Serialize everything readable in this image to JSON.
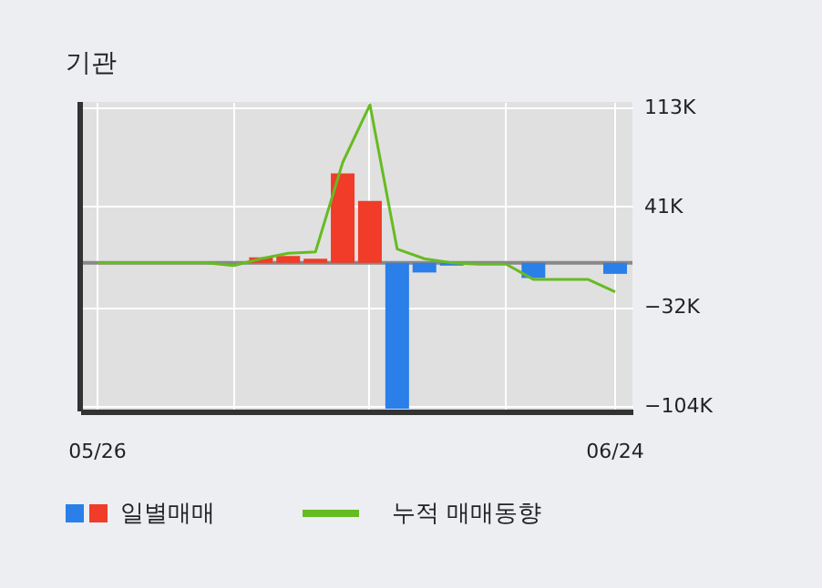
{
  "chart_data": {
    "type": "bar",
    "title": "기관",
    "categories": [
      "05/26",
      null,
      null,
      null,
      null,
      null,
      null,
      null,
      null,
      null,
      null,
      null,
      null,
      null,
      null,
      null,
      null,
      null,
      null,
      "06/24"
    ],
    "series": [
      {
        "name": "일별매매",
        "colors": [
          "#2a7fe8",
          "#2a7fe8",
          "#2a7fe8",
          "#2a7fe8",
          "#2a7fe8",
          "#2a7fe8",
          "#f03c28",
          "#f03c28",
          "#f03c28",
          "#f03c28",
          "#f03c28",
          "#2a7fe8",
          "#2a7fe8",
          "#2a7fe8",
          "#2a7fe8",
          "#2a7fe8",
          "#2a7fe8",
          "#2a7fe8",
          "#2a7fe8",
          "#2a7fe8"
        ],
        "values": [
          0,
          0,
          0,
          0,
          0,
          null,
          4000,
          5000,
          3000,
          65000,
          45000,
          -106000,
          -7000,
          -2000,
          null,
          0,
          -11000,
          0,
          0,
          -8000
        ]
      },
      {
        "name": "누적 매매동향",
        "type": "line",
        "color": "#66bb22",
        "values": [
          0,
          0,
          0,
          0,
          0,
          -2000,
          3000,
          7000,
          8000,
          73000,
          115000,
          10000,
          3000,
          0,
          -1000,
          -1000,
          -12000,
          -12000,
          -12000,
          -21000
        ]
      }
    ],
    "ylim": [
      -108000,
      117000
    ],
    "yticks": [
      {
        "value": 113000,
        "label": "113K"
      },
      {
        "value": 41000,
        "label": "41K"
      },
      {
        "value": -32000,
        "label": "−32K"
      },
      {
        "value": -104000,
        "label": "−104K"
      }
    ],
    "ref_lines": [
      {
        "axis": "y",
        "value": 0,
        "color": "#888888"
      }
    ],
    "grid": true,
    "legend": "bottom"
  }
}
